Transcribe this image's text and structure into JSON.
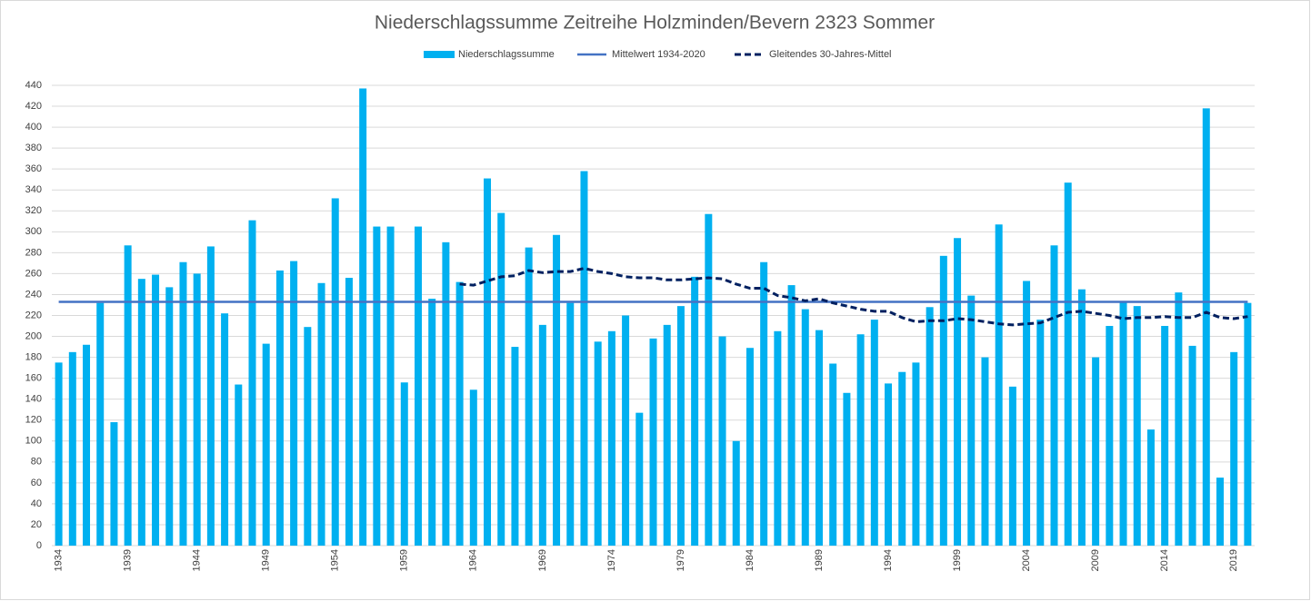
{
  "chart_data": {
    "type": "bar",
    "title": "Niederschlagssumme Zeitreihe Holzminden/Bevern 2323 Sommer",
    "categories": [
      "1934",
      null,
      null,
      null,
      null,
      "1939",
      null,
      null,
      null,
      null,
      "1944",
      null,
      null,
      null,
      null,
      "1949",
      null,
      null,
      null,
      null,
      "1954",
      null,
      null,
      null,
      null,
      "1959",
      null,
      null,
      null,
      null,
      "1964",
      null,
      null,
      null,
      null,
      "1969",
      null,
      null,
      null,
      null,
      "1974",
      null,
      null,
      null,
      null,
      "1979",
      null,
      null,
      null,
      null,
      "1984",
      null,
      null,
      null,
      null,
      "1989",
      null,
      null,
      null,
      null,
      "1994",
      null,
      null,
      null,
      null,
      "1999",
      null,
      null,
      null,
      null,
      "2004",
      null,
      null,
      null,
      null,
      "2009",
      null,
      null,
      null,
      null,
      "2014",
      null,
      null,
      null,
      null,
      "2019",
      null
    ],
    "series": [
      {
        "name": "Niederschlagssumme",
        "kind": "bar",
        "color": "#00b0f0",
        "values": [
          175,
          185,
          192,
          232,
          118,
          287,
          255,
          259,
          247,
          271,
          260,
          286,
          222,
          154,
          311,
          193,
          263,
          272,
          209,
          251,
          332,
          256,
          437,
          305,
          305,
          156,
          305,
          236,
          290,
          252,
          149,
          351,
          318,
          190,
          285,
          211,
          297,
          232,
          358,
          195,
          205,
          220,
          127,
          198,
          211,
          229,
          257,
          317,
          200,
          100,
          189,
          271,
          205,
          249,
          226,
          206,
          174,
          146,
          202,
          216,
          155,
          166,
          175,
          228,
          277,
          294,
          239,
          180,
          307,
          152,
          253,
          216,
          287,
          347,
          245,
          180,
          210,
          233,
          229,
          111,
          210,
          242,
          191,
          418,
          65,
          185,
          232
        ]
      },
      {
        "name": "Mittelwert 1934-2020",
        "kind": "line",
        "style": "solid",
        "color": "#4472c4",
        "values": [
          233,
          233,
          233,
          233,
          233,
          233,
          233,
          233,
          233,
          233,
          233,
          233,
          233,
          233,
          233,
          233,
          233,
          233,
          233,
          233,
          233,
          233,
          233,
          233,
          233,
          233,
          233,
          233,
          233,
          233,
          233,
          233,
          233,
          233,
          233,
          233,
          233,
          233,
          233,
          233,
          233,
          233,
          233,
          233,
          233,
          233,
          233,
          233,
          233,
          233,
          233,
          233,
          233,
          233,
          233,
          233,
          233,
          233,
          233,
          233,
          233,
          233,
          233,
          233,
          233,
          233,
          233,
          233,
          233,
          233,
          233,
          233,
          233,
          233,
          233,
          233,
          233,
          233,
          233,
          233,
          233,
          233,
          233,
          233,
          233,
          233,
          233
        ]
      },
      {
        "name": "Gleitendes 30-Jahres-Mittel",
        "kind": "line",
        "style": "dashed",
        "color": "#002060",
        "values": [
          null,
          null,
          null,
          null,
          null,
          null,
          null,
          null,
          null,
          null,
          null,
          null,
          null,
          null,
          null,
          null,
          null,
          null,
          null,
          null,
          null,
          null,
          null,
          null,
          null,
          null,
          null,
          null,
          null,
          250,
          249,
          253,
          257,
          258,
          263,
          261,
          262,
          262,
          265,
          262,
          260,
          257,
          256,
          256,
          254,
          254,
          255,
          256,
          255,
          250,
          246,
          246,
          239,
          237,
          234,
          236,
          232,
          229,
          226,
          224,
          224,
          218,
          214,
          215,
          215,
          217,
          216,
          214,
          212,
          211,
          212,
          213,
          218,
          223,
          224,
          222,
          220,
          217,
          218,
          218,
          219,
          218,
          218,
          223,
          218,
          217,
          219
        ]
      }
    ],
    "ylim": [
      0,
      440
    ],
    "yticks": [
      0,
      20,
      40,
      60,
      80,
      100,
      120,
      140,
      160,
      180,
      200,
      220,
      240,
      260,
      280,
      300,
      320,
      340,
      360,
      380,
      400,
      420,
      440
    ],
    "grid": true,
    "legend": "top"
  }
}
